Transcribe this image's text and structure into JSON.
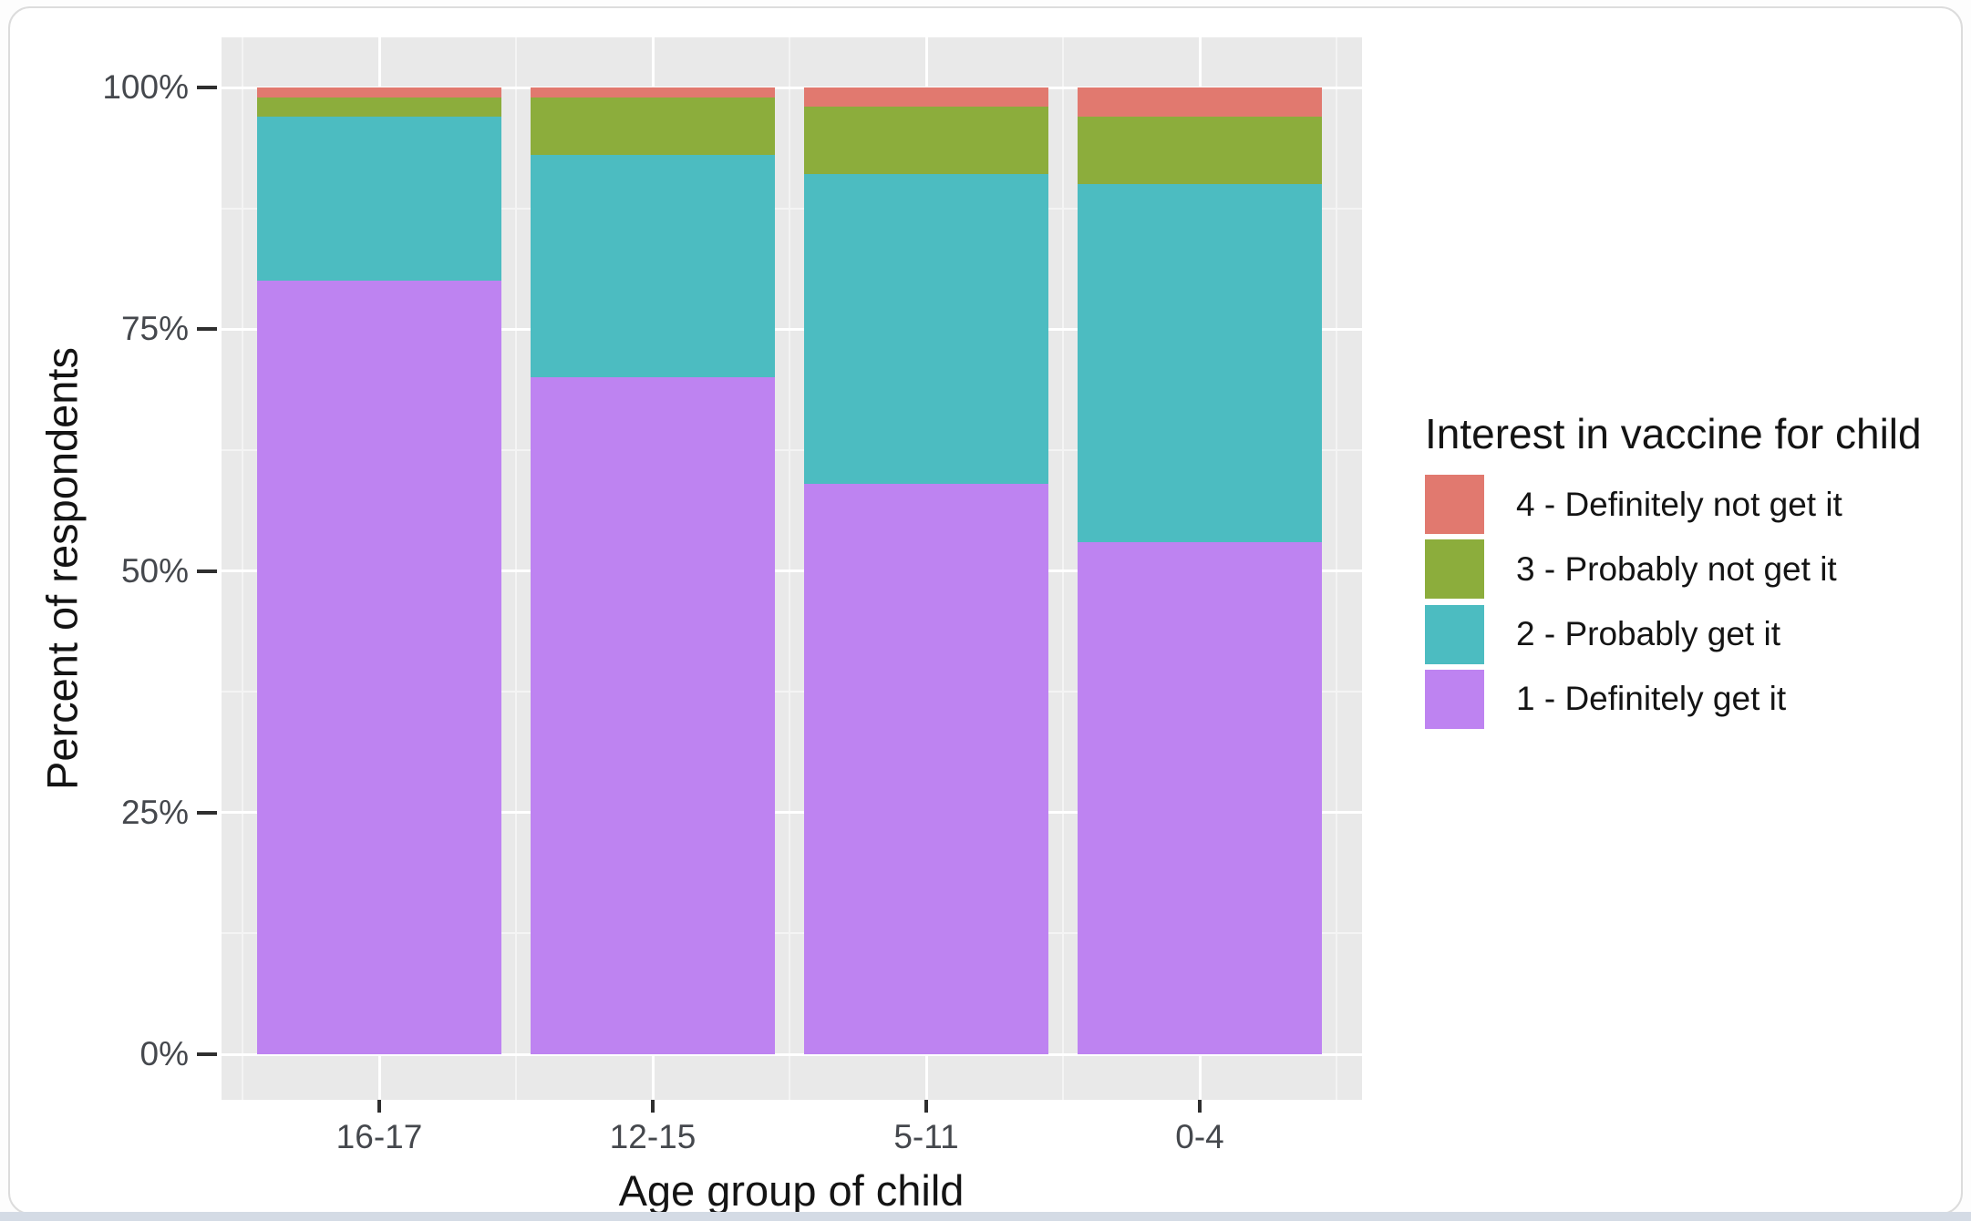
{
  "chart_data": {
    "type": "bar",
    "stacking": "percent-fill",
    "orientation": "vertical",
    "title": "",
    "xlabel": "Age group of child",
    "ylabel": "Percent of respondents",
    "categories": [
      "16-17",
      "12-15",
      "5-11",
      "0-4"
    ],
    "series": [
      {
        "name": "4 - Definitely not get it",
        "color": "#E1796F",
        "values": [
          1,
          1,
          2,
          3
        ]
      },
      {
        "name": "3 - Probably not get it",
        "color": "#8CAD3C",
        "values": [
          2,
          6,
          7,
          7
        ]
      },
      {
        "name": "2 - Probably get it",
        "color": "#4CBCC1",
        "values": [
          17,
          23,
          32,
          37
        ]
      },
      {
        "name": "1 - Definitely get it",
        "color": "#BE83F1",
        "values": [
          80,
          70,
          59,
          53
        ]
      }
    ],
    "ylim": [
      0,
      100
    ],
    "y_ticks": [
      {
        "value": 0,
        "label": "0%"
      },
      {
        "value": 25,
        "label": "25%"
      },
      {
        "value": 50,
        "label": "50%"
      },
      {
        "value": 75,
        "label": "75%"
      },
      {
        "value": 100,
        "label": "100%"
      }
    ],
    "y_minor_ticks": [
      12.5,
      37.5,
      62.5,
      87.5
    ],
    "grid": {
      "panel_background": "#e9e9e9",
      "major_color": "#ffffff",
      "minor_color": "#f4f4f4"
    },
    "legend": {
      "title": "Interest in vaccine for child",
      "position": "right"
    }
  },
  "page": {
    "card_background": "#ffffff",
    "card_border_color": "#dcdcdc",
    "bottom_strip_color": "#d4dbe5"
  }
}
